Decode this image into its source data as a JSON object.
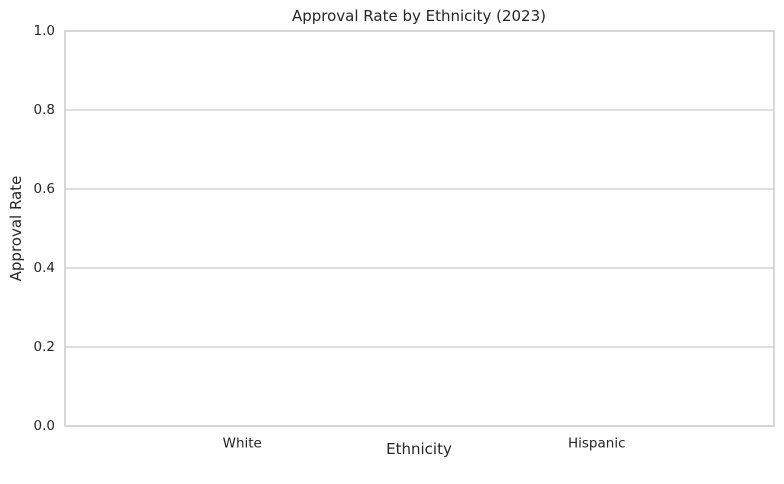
{
  "chart_data": {
    "type": "bar",
    "title": "Approval Rate by Ethnicity (2023)",
    "xlabel": "Ethnicity",
    "ylabel": "Approval Rate",
    "categories": [
      "White",
      "Hispanic"
    ],
    "values": [
      0,
      0
    ],
    "ylim": [
      0,
      1
    ],
    "yticks": [
      "0.0",
      "0.2",
      "0.4",
      "0.6",
      "0.8",
      "1.0"
    ],
    "grid": "horizontal",
    "legend": "none"
  }
}
